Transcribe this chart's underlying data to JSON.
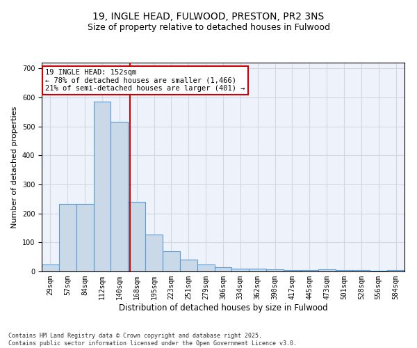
{
  "title1": "19, INGLE HEAD, FULWOOD, PRESTON, PR2 3NS",
  "title2": "Size of property relative to detached houses in Fulwood",
  "xlabel": "Distribution of detached houses by size in Fulwood",
  "ylabel": "Number of detached properties",
  "categories": [
    "29sqm",
    "57sqm",
    "84sqm",
    "112sqm",
    "140sqm",
    "168sqm",
    "195sqm",
    "223sqm",
    "251sqm",
    "279sqm",
    "306sqm",
    "334sqm",
    "362sqm",
    "390sqm",
    "417sqm",
    "445sqm",
    "473sqm",
    "501sqm",
    "528sqm",
    "556sqm",
    "584sqm"
  ],
  "values": [
    25,
    232,
    232,
    585,
    515,
    240,
    127,
    70,
    40,
    25,
    15,
    10,
    10,
    7,
    5,
    5,
    8,
    5,
    5,
    3,
    5
  ],
  "bar_color": "#c9d9e8",
  "bar_edge_color": "#5b9bd5",
  "bar_edge_width": 0.8,
  "vline_x": 4.62,
  "vline_color": "#cc0000",
  "annotation_text": "19 INGLE HEAD: 152sqm\n← 78% of detached houses are smaller (1,466)\n21% of semi-detached houses are larger (401) →",
  "annotation_box_color": "#cc0000",
  "ylim": [
    0,
    720
  ],
  "yticks": [
    0,
    100,
    200,
    300,
    400,
    500,
    600,
    700
  ],
  "grid_color": "#d0d8e8",
  "background_color": "#eef2fa",
  "footer_text": "Contains HM Land Registry data © Crown copyright and database right 2025.\nContains public sector information licensed under the Open Government Licence v3.0.",
  "title1_fontsize": 10,
  "title2_fontsize": 9,
  "xlabel_fontsize": 8.5,
  "ylabel_fontsize": 8,
  "tick_fontsize": 7,
  "annotation_fontsize": 7.5,
  "footer_fontsize": 6
}
